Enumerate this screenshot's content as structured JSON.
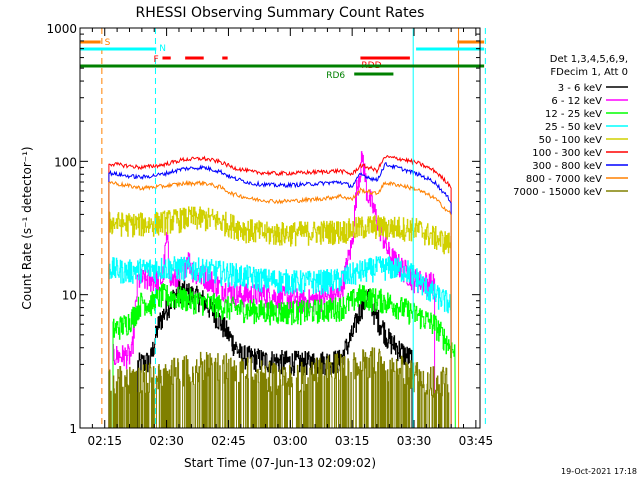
{
  "chart_data": {
    "type": "line",
    "title": "RHESSI Observing Summary Count Rates",
    "xlabel": "Start Time (07-Jun-13 02:09:02)",
    "ylabel": "Count Rate (s⁻¹ detector⁻¹)",
    "y_scale": "log",
    "ylim": [
      1,
      1000
    ],
    "xlim_minutes": [
      0,
      97
    ],
    "x_ticks": [
      {
        "t": 6,
        "label": "02:15"
      },
      {
        "t": 21,
        "label": "02:30"
      },
      {
        "t": 36,
        "label": "02:45"
      },
      {
        "t": 51,
        "label": "03:00"
      },
      {
        "t": 66,
        "label": "03:15"
      },
      {
        "t": 81,
        "label": "03:30"
      },
      {
        "t": 96,
        "label": "03:45"
      }
    ],
    "y_ticks": [
      {
        "v": 1,
        "label": "1"
      },
      {
        "v": 10,
        "label": "10"
      },
      {
        "v": 100,
        "label": "100"
      },
      {
        "v": 1000,
        "label": "1000"
      }
    ],
    "legend_header": [
      "Det 1,3,4,5,6,9,",
      "FDecim 1, Att 0"
    ],
    "legend_position": "right",
    "footer_date": "19-Oct-2021 17:18",
    "flags": [
      {
        "label": "S",
        "color": "#ff8000",
        "row": 0,
        "segments": [
          [
            0,
            5
          ],
          [
            91.5,
            98
          ]
        ]
      },
      {
        "label": "N",
        "color": "#00ffff",
        "row": 1,
        "segments": [
          [
            0,
            18.5
          ],
          [
            81.5,
            98
          ]
        ]
      },
      {
        "label": "F",
        "color": "#ff0000",
        "row": 2,
        "segments": [
          [
            20,
            22
          ],
          [
            25.5,
            30
          ],
          [
            34.5,
            35.8
          ]
        ]
      },
      {
        "label": "RDD",
        "color": "#ff0000",
        "row": 3,
        "segments": [
          [
            68,
            80
          ]
        ]
      },
      {
        "label": "",
        "color": "#008000",
        "row": 4,
        "segments": [
          [
            0,
            98
          ]
        ]
      },
      {
        "label": "RD6",
        "color": "#008000",
        "row": 5,
        "segments": [
          [
            66.5,
            76
          ]
        ]
      }
    ],
    "vlines": [
      {
        "t": 0,
        "color": "#00ffff",
        "style": "solid"
      },
      {
        "t": 5.3,
        "color": "#ff8000",
        "style": "dashed"
      },
      {
        "t": 18.3,
        "color": "#00ffff",
        "style": "dashed"
      },
      {
        "t": 80.8,
        "color": "#00ffff",
        "style": "solid"
      },
      {
        "t": 91.8,
        "color": "#ff8000",
        "style": "solid"
      },
      {
        "t": 98.3,
        "color": "#00ffff",
        "style": "dashed"
      }
    ],
    "series": [
      {
        "name": "3 - 6 keV",
        "color": "#000000",
        "style": "noisy",
        "points": [
          [
            14,
            3
          ],
          [
            17,
            3.2
          ],
          [
            19,
            6
          ],
          [
            21,
            8
          ],
          [
            24,
            11
          ],
          [
            27,
            10
          ],
          [
            30,
            9
          ],
          [
            33,
            7
          ],
          [
            36,
            5
          ],
          [
            39,
            3.5
          ],
          [
            45,
            3.2
          ],
          [
            55,
            3.1
          ],
          [
            63,
            3.2
          ],
          [
            66,
            5
          ],
          [
            68,
            8
          ],
          [
            70,
            10
          ],
          [
            71.5,
            7
          ],
          [
            73,
            6
          ],
          [
            75,
            4.5
          ],
          [
            77,
            4
          ],
          [
            79,
            3.5
          ],
          [
            80.5,
            3.3
          ]
        ]
      },
      {
        "name": "6 - 12 keV",
        "color": "#ff00ff",
        "style": "noisy",
        "points": [
          [
            8,
            3.5
          ],
          [
            10,
            3.5
          ],
          [
            12.5,
            3.5
          ],
          [
            14,
            13
          ],
          [
            17,
            13
          ],
          [
            20,
            13
          ],
          [
            21,
            27
          ],
          [
            22,
            13
          ],
          [
            24,
            13
          ],
          [
            26,
            19
          ],
          [
            28,
            14
          ],
          [
            30,
            14
          ],
          [
            33,
            12
          ],
          [
            38,
            10
          ],
          [
            45,
            10
          ],
          [
            55,
            9
          ],
          [
            63,
            10
          ],
          [
            66,
            25
          ],
          [
            67,
            60
          ],
          [
            68.5,
            110
          ],
          [
            69.5,
            60
          ],
          [
            71,
            45
          ],
          [
            73,
            30
          ],
          [
            75,
            20
          ],
          [
            77,
            17
          ],
          [
            79,
            15
          ],
          [
            81,
            13
          ],
          [
            86,
            12
          ]
        ]
      },
      {
        "name": "12 - 25 keV",
        "color": "#00ff00",
        "style": "noisy",
        "points": [
          [
            8,
            5.5
          ],
          [
            11,
            6
          ],
          [
            13,
            7
          ],
          [
            15,
            9
          ],
          [
            17,
            8.5
          ],
          [
            20,
            10
          ],
          [
            24,
            9.5
          ],
          [
            28,
            9
          ],
          [
            32,
            8.5
          ],
          [
            36,
            8
          ],
          [
            45,
            7.5
          ],
          [
            55,
            7.5
          ],
          [
            63,
            8
          ],
          [
            66,
            9
          ],
          [
            68,
            10
          ],
          [
            70,
            9.5
          ],
          [
            74,
            9
          ],
          [
            78,
            8
          ],
          [
            82,
            7
          ],
          [
            86,
            6
          ],
          [
            91,
            3.6
          ]
        ]
      },
      {
        "name": "25 - 50 keV",
        "color": "#00ffff",
        "style": "noisy",
        "points": [
          [
            7,
            16
          ],
          [
            11,
            15
          ],
          [
            15,
            15.5
          ],
          [
            19,
            16
          ],
          [
            24,
            16
          ],
          [
            30,
            15.5
          ],
          [
            36,
            14.5
          ],
          [
            45,
            13
          ],
          [
            55,
            12.5
          ],
          [
            63,
            13
          ],
          [
            65,
            14
          ],
          [
            68,
            15
          ],
          [
            72,
            16
          ],
          [
            76,
            16
          ],
          [
            80,
            15
          ],
          [
            83,
            12
          ],
          [
            86,
            10
          ],
          [
            90,
            8.5
          ]
        ]
      },
      {
        "name": "50 - 100 keV",
        "color": "#d0d000",
        "style": "noisy",
        "points": [
          [
            7,
            35
          ],
          [
            12,
            34
          ],
          [
            17,
            34
          ],
          [
            22,
            36
          ],
          [
            27,
            38
          ],
          [
            32,
            37
          ],
          [
            36,
            34
          ],
          [
            40,
            31
          ],
          [
            45,
            29
          ],
          [
            50,
            29
          ],
          [
            55,
            29.5
          ],
          [
            60,
            30
          ],
          [
            63,
            30
          ],
          [
            66,
            31
          ],
          [
            68,
            32
          ],
          [
            71,
            33
          ],
          [
            74,
            32
          ],
          [
            78,
            32
          ],
          [
            82,
            31
          ],
          [
            86,
            27
          ],
          [
            90,
            24
          ]
        ]
      },
      {
        "name": "100 - 300 keV",
        "color": "#ff0000",
        "style": "smooth",
        "points": [
          [
            7,
            96
          ],
          [
            11,
            93
          ],
          [
            15,
            90
          ],
          [
            20,
            94
          ],
          [
            25,
            103
          ],
          [
            30,
            105
          ],
          [
            34,
            99
          ],
          [
            37,
            90
          ],
          [
            42,
            83
          ],
          [
            48,
            81
          ],
          [
            54,
            82
          ],
          [
            60,
            84
          ],
          [
            63,
            85
          ],
          [
            66,
            80
          ],
          [
            68,
            93
          ],
          [
            70,
            90
          ],
          [
            72,
            85
          ],
          [
            74,
            108
          ],
          [
            78,
            104
          ],
          [
            82,
            97
          ],
          [
            86,
            85
          ],
          [
            90,
            65
          ]
        ]
      },
      {
        "name": "300 - 800 keV",
        "color": "#0000ff",
        "style": "smooth",
        "points": [
          [
            7,
            82
          ],
          [
            11,
            78
          ],
          [
            15,
            76
          ],
          [
            20,
            80
          ],
          [
            25,
            88
          ],
          [
            30,
            90
          ],
          [
            34,
            84
          ],
          [
            37,
            75
          ],
          [
            42,
            68
          ],
          [
            48,
            66
          ],
          [
            54,
            67
          ],
          [
            60,
            69
          ],
          [
            63,
            70
          ],
          [
            66,
            65
          ],
          [
            68,
            80
          ],
          [
            70,
            76
          ],
          [
            72,
            72
          ],
          [
            74,
            95
          ],
          [
            78,
            88
          ],
          [
            82,
            80
          ],
          [
            86,
            70
          ],
          [
            90,
            50
          ]
        ]
      },
      {
        "name": "800 - 7000 keV",
        "color": "#ff8000",
        "style": "smooth",
        "points": [
          [
            7,
            70
          ],
          [
            11,
            66
          ],
          [
            15,
            63
          ],
          [
            20,
            65
          ],
          [
            25,
            68
          ],
          [
            30,
            69
          ],
          [
            34,
            64
          ],
          [
            37,
            57
          ],
          [
            42,
            52
          ],
          [
            48,
            50
          ],
          [
            54,
            51
          ],
          [
            60,
            53
          ],
          [
            63,
            55
          ],
          [
            66,
            52
          ],
          [
            68,
            61
          ],
          [
            70,
            59
          ],
          [
            72,
            57
          ],
          [
            74,
            69
          ],
          [
            78,
            66
          ],
          [
            82,
            61
          ],
          [
            86,
            53
          ],
          [
            90,
            40
          ]
        ]
      },
      {
        "name": "7000 - 15000 keV",
        "color": "#808000",
        "style": "spiky",
        "points": [
          [
            7,
            2.0
          ],
          [
            20,
            2.2
          ],
          [
            30,
            2.6
          ],
          [
            40,
            2.4
          ],
          [
            50,
            2.0
          ],
          [
            60,
            2.5
          ],
          [
            66,
            2.6
          ],
          [
            72,
            2.8
          ],
          [
            78,
            2.4
          ],
          [
            84,
            2.0
          ],
          [
            90,
            2.0
          ]
        ]
      }
    ]
  }
}
